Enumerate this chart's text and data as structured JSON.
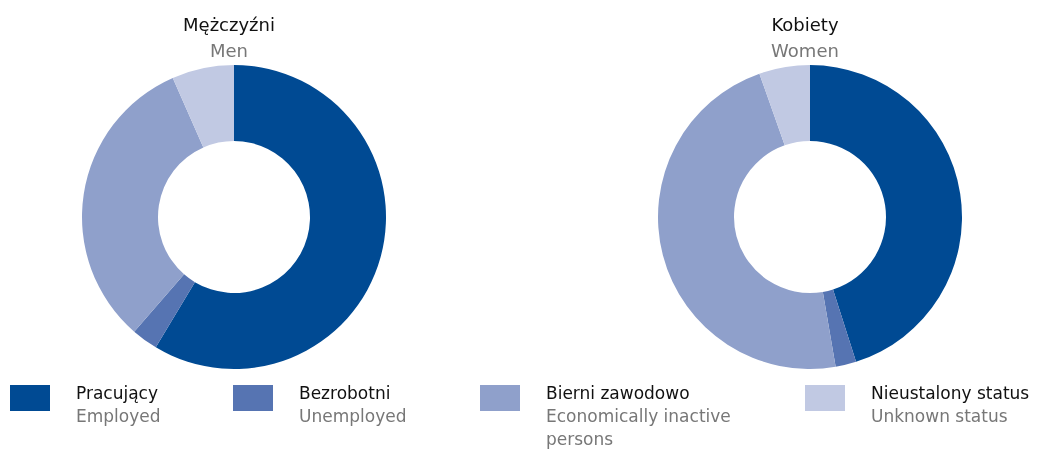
{
  "chart_data": [
    {
      "type": "donut",
      "title": "Mężczyźni",
      "subtitle": "Men",
      "categories": [
        "Pracujący\nEmployed",
        "Bezrobotni\nUnemployed",
        "Bierni zawodowo\nEconomically inactive persons",
        "Nieustalony status\nUnknown status"
      ],
      "values": [
        58.6,
        2.8,
        32.0,
        6.6
      ],
      "colors": [
        "#004a93",
        "#5674b2",
        "#8fa0cb",
        "#c1c9e3"
      ],
      "legend": "bottom"
    },
    {
      "type": "donut",
      "title": "Kobiety",
      "subtitle": "Women",
      "categories": [
        null,
        null,
        null,
        null
      ],
      "values": [
        45.1,
        2.2,
        47.3,
        5.4
      ],
      "colors": [
        "#004a93",
        "#5674b2",
        "#8fa0cb",
        "#c1c9e3"
      ]
    }
  ]
}
